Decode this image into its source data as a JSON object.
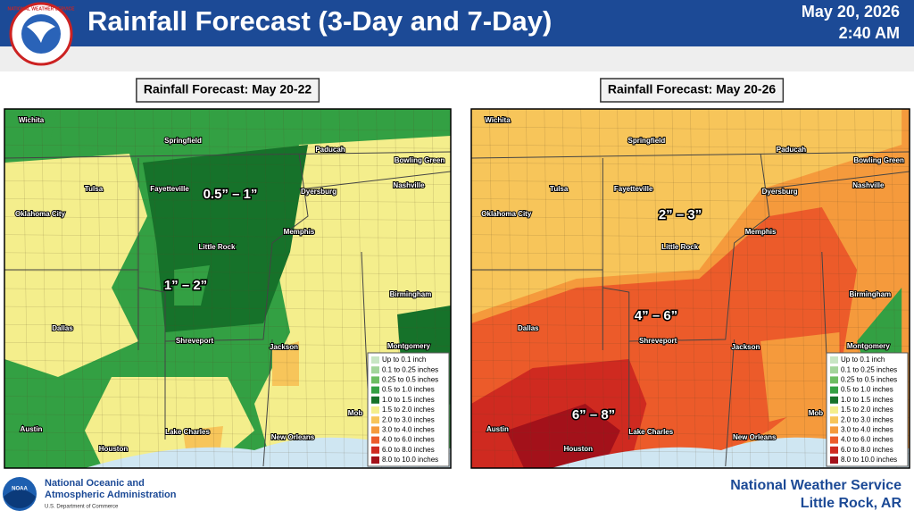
{
  "header": {
    "title": "Rainfall Forecast (3-Day and 7-Day)",
    "date": "May 20, 2026",
    "time": "2:40 AM",
    "logo_text": "NATIONAL WEATHER SERVICE"
  },
  "cities": [
    "Wichita",
    "Springfield",
    "Paducah",
    "Bowling Green",
    "Tulsa",
    "Fayetteville",
    "Dyersburg",
    "Nashville",
    "Oklahoma City",
    "Memphis",
    "Little Rock",
    "Birmingham",
    "Dallas",
    "Shreveport",
    "Jackson",
    "Montgomery",
    "Austin",
    "Lake Charles",
    "Houston",
    "New Orleans",
    "Mob"
  ],
  "legend": [
    {
      "label": "Up to 0.1 inch",
      "color": "#c8e6c4"
    },
    {
      "label": "0.1 to 0.25 inches",
      "color": "#a3d59b"
    },
    {
      "label": "0.25 to 0.5 inches",
      "color": "#6cbd62"
    },
    {
      "label": "0.5 to 1.0 inches",
      "color": "#33a043"
    },
    {
      "label": "1.0 to 1.5 inches",
      "color": "#16722a"
    },
    {
      "label": "1.5 to 2.0 inches",
      "color": "#f4ee8c"
    },
    {
      "label": "2.0 to 3.0 inches",
      "color": "#f7c55a"
    },
    {
      "label": "3.0 to 4.0 inches",
      "color": "#f59a3c"
    },
    {
      "label": "4.0 to 6.0 inches",
      "color": "#ec5b2a"
    },
    {
      "label": "6.0 to 8.0 inches",
      "color": "#cf2a20"
    },
    {
      "label": "8.0 to 10.0 inches",
      "color": "#a3111a"
    }
  ],
  "panels": [
    {
      "title": "Rainfall Forecast: May 20-22",
      "ranges": [
        "0.5” – 1”",
        "1” – 2”"
      ]
    },
    {
      "title": "Rainfall Forecast: May 20-26",
      "ranges": [
        "2” – 3”",
        "4” – 6”",
        "6” – 8”"
      ]
    }
  ],
  "footer": {
    "agency_line1": "National Oceanic and",
    "agency_line2": "Atmospheric Administration",
    "department": "U.S. Department of Commerce",
    "noaa_logo": "NOAA",
    "office_line1": "National Weather Service",
    "office_line2": "Little Rock, AR"
  }
}
